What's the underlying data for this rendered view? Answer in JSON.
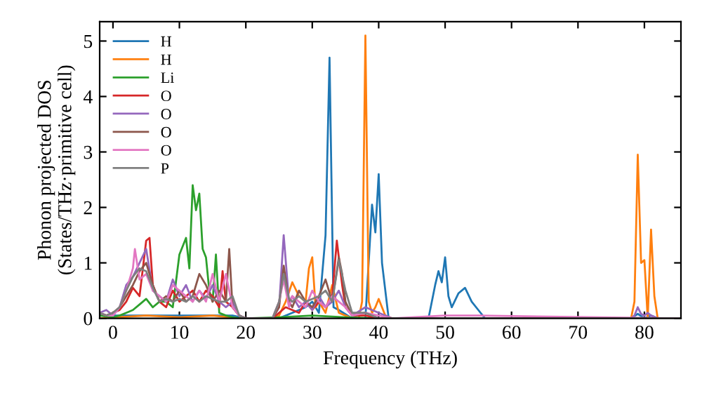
{
  "chart_data": {
    "type": "line",
    "xlabel": "Frequency (THz)",
    "ylabel": "Phonon projected DOS\n(States/THz·primitive cell)",
    "xlim": [
      -2,
      85.5
    ],
    "ylim": [
      0,
      5.35
    ],
    "xticks": [
      0,
      10,
      20,
      30,
      40,
      50,
      60,
      70,
      80
    ],
    "yticks": [
      0,
      1,
      2,
      3,
      4,
      5
    ],
    "grid": false,
    "legend": "top left",
    "marker": "none",
    "line_style": "solid",
    "series": [
      {
        "name": "H",
        "color": "#1f77b4",
        "x": [
          -2,
          0,
          5,
          10,
          18,
          20,
          25,
          27,
          29,
          30,
          31,
          32,
          32.6,
          33.2,
          34,
          36,
          38,
          39,
          39.5,
          40,
          40.5,
          41.5,
          42,
          47.5,
          48.5,
          49,
          49.5,
          50,
          50.5,
          51,
          52,
          53,
          54,
          55,
          56,
          57,
          78,
          79,
          80,
          81,
          82,
          85
        ],
        "values": [
          0.05,
          0.05,
          0.05,
          0.05,
          0.05,
          0,
          0,
          0.1,
          0.2,
          0.3,
          0.1,
          1.5,
          4.7,
          0.2,
          0.15,
          0,
          0,
          2.05,
          1.55,
          2.6,
          1.0,
          0,
          0,
          0,
          0.6,
          0.85,
          0.65,
          1.1,
          0.4,
          0.2,
          0.45,
          0.55,
          0.3,
          0.15,
          0,
          0,
          0,
          0.08,
          0,
          0.05,
          0,
          0
        ]
      },
      {
        "name": "H",
        "color": "#ff7f0e",
        "x": [
          -2,
          5,
          10,
          15,
          19,
          20,
          24,
          25,
          26,
          27,
          28,
          29,
          29.5,
          30,
          30.5,
          31,
          32,
          33,
          34,
          36,
          37,
          37.5,
          38,
          38.5,
          39,
          39.5,
          40,
          41,
          42,
          78,
          78.5,
          79,
          79.5,
          80,
          80.5,
          81,
          81.5,
          82,
          85
        ],
        "values": [
          0,
          0.05,
          0.02,
          0.05,
          0,
          0,
          0,
          0.05,
          0.3,
          0.65,
          0.4,
          0.3,
          0.9,
          1.1,
          0.2,
          0.3,
          0.1,
          0.6,
          0.1,
          0,
          0,
          0.3,
          5.1,
          0.3,
          0.1,
          0.2,
          0.35,
          0.05,
          0,
          0,
          0.3,
          2.95,
          1.0,
          1.05,
          0,
          1.6,
          0.4,
          0,
          0
        ]
      },
      {
        "name": "Li",
        "color": "#2ca02c",
        "x": [
          -2,
          0,
          1,
          2,
          3,
          4,
          5,
          6,
          7,
          8,
          9,
          10,
          11,
          11.5,
          12,
          12.5,
          13,
          13.5,
          14,
          14.5,
          15,
          15.5,
          16,
          17,
          18,
          19,
          20,
          25,
          30,
          35,
          40,
          85
        ],
        "values": [
          0.05,
          0.02,
          0.05,
          0.1,
          0.15,
          0.25,
          0.35,
          0.2,
          0.3,
          0.3,
          0.2,
          1.15,
          1.45,
          0.9,
          2.4,
          1.95,
          2.25,
          1.25,
          1.1,
          0.5,
          0.3,
          1.15,
          0.1,
          0.05,
          0.02,
          0,
          0,
          0.02,
          0.05,
          0.02,
          0,
          0
        ]
      },
      {
        "name": "O",
        "color": "#d62728",
        "x": [
          -2,
          -1,
          0,
          1,
          2,
          3,
          4,
          5,
          5.5,
          6,
          7,
          8,
          9,
          10,
          11,
          12,
          13,
          14,
          15,
          16,
          16.5,
          17,
          18,
          19,
          20,
          24,
          25,
          26,
          27,
          28,
          29,
          30,
          31,
          32,
          33,
          33.7,
          34.5,
          35,
          36,
          38,
          40,
          85
        ],
        "values": [
          0.1,
          0.05,
          0.1,
          0.15,
          0.3,
          0.55,
          0.4,
          1.4,
          1.45,
          0.6,
          0.3,
          0.2,
          0.5,
          0.3,
          0.4,
          0.5,
          0.3,
          0.5,
          0.4,
          0.2,
          0.85,
          0.3,
          0.2,
          0.05,
          0,
          0,
          0.1,
          0.2,
          0.15,
          0.1,
          0.3,
          0.15,
          0.3,
          0.2,
          0.4,
          1.4,
          0.6,
          0.2,
          0.05,
          0.05,
          0,
          0
        ]
      },
      {
        "name": "O",
        "color": "#9467bd",
        "x": [
          -2,
          -1,
          0,
          1,
          2,
          3,
          4,
          5,
          6,
          7,
          8,
          9,
          10,
          11,
          12,
          13,
          14,
          15,
          16,
          17,
          18,
          19,
          20,
          24,
          25,
          25.7,
          26.5,
          27,
          28,
          29,
          30,
          31,
          32,
          33,
          34,
          35,
          36,
          38,
          40,
          42,
          78,
          78.5,
          79,
          79.5,
          80,
          80.5,
          81,
          82,
          85
        ],
        "values": [
          0.1,
          0.15,
          0.05,
          0.2,
          0.6,
          0.75,
          1.0,
          1.25,
          0.5,
          0.4,
          0.3,
          0.7,
          0.4,
          0.6,
          0.3,
          0.5,
          0.35,
          0.6,
          0.3,
          0.2,
          0.3,
          0.05,
          0,
          0,
          0.2,
          1.5,
          0.3,
          0.4,
          0.2,
          0.3,
          0.15,
          0.4,
          0.2,
          0.3,
          0.5,
          0.2,
          0.05,
          0.2,
          0.1,
          0,
          0,
          0.05,
          0.2,
          0.08,
          0.05,
          0.1,
          0.05,
          0,
          0
        ]
      },
      {
        "name": "O",
        "color": "#8c564b",
        "x": [
          -2,
          -1,
          0,
          1,
          2,
          3,
          4,
          5,
          6,
          7,
          8,
          9,
          10,
          11,
          12,
          13,
          14,
          15,
          16,
          17,
          17.5,
          18,
          19,
          20,
          24,
          25,
          25.7,
          26.5,
          27,
          28,
          29,
          30,
          31,
          32,
          33,
          34,
          34.5,
          35,
          36,
          38,
          40,
          85
        ],
        "values": [
          0.1,
          0.05,
          0.1,
          0.2,
          0.4,
          0.6,
          0.85,
          1.0,
          0.6,
          0.3,
          0.4,
          0.3,
          0.5,
          0.3,
          0.4,
          0.8,
          0.6,
          0.3,
          0.5,
          0.3,
          1.25,
          0.2,
          0.05,
          0,
          0,
          0.2,
          0.95,
          0.3,
          0.2,
          0.5,
          0.3,
          0.2,
          0.4,
          0.7,
          0.3,
          1.1,
          0.8,
          0.3,
          0.05,
          0.1,
          0,
          0
        ]
      },
      {
        "name": "O",
        "color": "#e377c2",
        "x": [
          -2,
          -1,
          0,
          1,
          2,
          3,
          3.3,
          4,
          5,
          6,
          7,
          8,
          9,
          10,
          11,
          12,
          13,
          14,
          15,
          16,
          17,
          18,
          19,
          20,
          24,
          25,
          25.7,
          26.5,
          27,
          28,
          29,
          30,
          31,
          32,
          33,
          34,
          35,
          36,
          38,
          40,
          42,
          50,
          55,
          85
        ],
        "values": [
          0.1,
          0.05,
          0.05,
          0.2,
          0.5,
          0.9,
          1.25,
          0.7,
          0.8,
          0.5,
          0.4,
          0.3,
          0.6,
          0.5,
          0.4,
          0.3,
          0.5,
          0.3,
          0.8,
          0.3,
          0.8,
          0.2,
          0.05,
          0,
          0,
          0.3,
          0.7,
          0.2,
          0.4,
          0.3,
          0.2,
          0.5,
          0.3,
          0.2,
          0.4,
          0.3,
          0.2,
          0.05,
          0.1,
          0.05,
          0,
          0.05,
          0.05,
          0
        ]
      },
      {
        "name": "P",
        "color": "#7f7f7f",
        "x": [
          -2,
          -1,
          0,
          1,
          2,
          3,
          4,
          5,
          6,
          7,
          8,
          9,
          10,
          11,
          12,
          13,
          14,
          15,
          16,
          17,
          18,
          19,
          20,
          24,
          25,
          25.7,
          26.5,
          27,
          28,
          29,
          30,
          31,
          32,
          33,
          34,
          35,
          36,
          38,
          40,
          85
        ],
        "values": [
          0.1,
          0.05,
          0.1,
          0.2,
          0.5,
          0.75,
          0.9,
          0.85,
          0.55,
          0.3,
          0.35,
          0.3,
          0.35,
          0.3,
          0.4,
          0.3,
          0.4,
          0.35,
          0.3,
          0.3,
          0.4,
          0.05,
          0,
          0,
          0.3,
          0.8,
          0.35,
          0.3,
          0.4,
          0.3,
          0.35,
          0.4,
          0.5,
          0.3,
          1.05,
          0.5,
          0.1,
          0.1,
          0,
          0
        ]
      }
    ]
  }
}
